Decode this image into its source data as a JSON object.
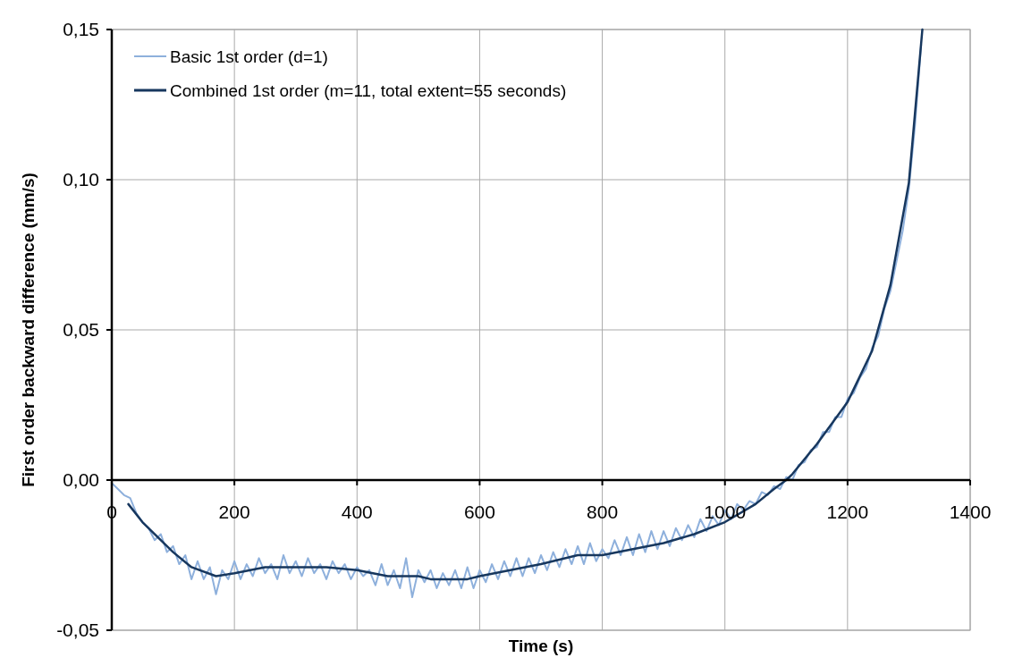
{
  "chart_data": {
    "type": "line",
    "xlabel": "Time (s)",
    "ylabel": "First order backward difference (mm/s)",
    "xlim": [
      0,
      1400
    ],
    "xticks": [
      0,
      200,
      400,
      600,
      800,
      1000,
      1200,
      1400
    ],
    "ylim": [
      -0.05,
      0.15
    ],
    "yticks": [
      {
        "value": -0.05,
        "label": "-0,05"
      },
      {
        "value": 0,
        "label": "0,00"
      },
      {
        "value": 0.05,
        "label": "0,05"
      },
      {
        "value": 0.1,
        "label": "0,10"
      },
      {
        "value": 0.15,
        "label": "0,15"
      }
    ],
    "grid": true,
    "legend": "top left",
    "marker": "none",
    "line_style": "solid",
    "series": [
      {
        "name": "Basic 1st order (d=1)",
        "color": "#8eb0dc",
        "x": [
          0,
          10,
          20,
          30,
          40,
          50,
          60,
          70,
          80,
          90,
          100,
          110,
          120,
          130,
          140,
          150,
          160,
          170,
          180,
          190,
          200,
          210,
          220,
          230,
          240,
          250,
          260,
          270,
          280,
          290,
          300,
          310,
          320,
          330,
          340,
          350,
          360,
          370,
          380,
          390,
          400,
          410,
          420,
          430,
          440,
          450,
          460,
          470,
          480,
          490,
          500,
          510,
          520,
          530,
          540,
          550,
          560,
          570,
          580,
          590,
          600,
          610,
          620,
          630,
          640,
          650,
          660,
          670,
          680,
          690,
          700,
          710,
          720,
          730,
          740,
          750,
          760,
          770,
          780,
          790,
          800,
          810,
          820,
          830,
          840,
          850,
          860,
          870,
          880,
          890,
          900,
          910,
          920,
          930,
          940,
          950,
          960,
          970,
          980,
          990,
          1000,
          1010,
          1020,
          1030,
          1040,
          1050,
          1060,
          1070,
          1080,
          1090,
          1100,
          1110,
          1120,
          1130,
          1140,
          1150,
          1160,
          1170,
          1180,
          1190,
          1200,
          1210,
          1220,
          1230,
          1240,
          1250,
          1260,
          1270,
          1280,
          1290,
          1300,
          1310,
          1320
        ],
        "values": [
          -0.001,
          -0.003,
          -0.005,
          -0.006,
          -0.011,
          -0.014,
          -0.016,
          -0.02,
          -0.018,
          -0.024,
          -0.022,
          -0.028,
          -0.025,
          -0.033,
          -0.027,
          -0.033,
          -0.029,
          -0.038,
          -0.03,
          -0.033,
          -0.027,
          -0.033,
          -0.028,
          -0.032,
          -0.026,
          -0.031,
          -0.028,
          -0.033,
          -0.025,
          -0.031,
          -0.027,
          -0.032,
          -0.026,
          -0.031,
          -0.028,
          -0.033,
          -0.027,
          -0.031,
          -0.028,
          -0.033,
          -0.029,
          -0.032,
          -0.03,
          -0.035,
          -0.028,
          -0.035,
          -0.03,
          -0.036,
          -0.026,
          -0.039,
          -0.03,
          -0.034,
          -0.03,
          -0.036,
          -0.031,
          -0.035,
          -0.03,
          -0.036,
          -0.029,
          -0.036,
          -0.03,
          -0.034,
          -0.028,
          -0.033,
          -0.027,
          -0.032,
          -0.026,
          -0.032,
          -0.026,
          -0.031,
          -0.025,
          -0.03,
          -0.024,
          -0.029,
          -0.023,
          -0.028,
          -0.022,
          -0.028,
          -0.021,
          -0.027,
          -0.023,
          -0.026,
          -0.02,
          -0.025,
          -0.019,
          -0.025,
          -0.018,
          -0.024,
          -0.017,
          -0.023,
          -0.017,
          -0.022,
          -0.016,
          -0.02,
          -0.015,
          -0.019,
          -0.013,
          -0.017,
          -0.012,
          -0.015,
          -0.01,
          -0.013,
          -0.008,
          -0.01,
          -0.007,
          -0.008,
          -0.004,
          -0.005,
          -0.002,
          -0.003,
          0.001,
          0,
          0.005,
          0.006,
          0.01,
          0.011,
          0.016,
          0.016,
          0.021,
          0.021,
          0.027,
          0.029,
          0.034,
          0.037,
          0.044,
          0.048,
          0.057,
          0.063,
          0.073,
          0.083,
          0.097,
          0.118,
          0.145
        ]
      },
      {
        "name": "Combined 1st order (m=11, total extent=55 seconds)",
        "color": "#17375e",
        "x": [
          27,
          50,
          100,
          130,
          170,
          200,
          250,
          300,
          350,
          400,
          450,
          500,
          520,
          580,
          600,
          650,
          700,
          760,
          800,
          850,
          900,
          950,
          1000,
          1050,
          1080,
          1100,
          1110,
          1150,
          1200,
          1240,
          1270,
          1300,
          1322
        ],
        "values": [
          -0.008,
          -0.014,
          -0.024,
          -0.029,
          -0.032,
          -0.031,
          -0.029,
          -0.029,
          -0.029,
          -0.03,
          -0.032,
          -0.032,
          -0.033,
          -0.033,
          -0.032,
          -0.03,
          -0.028,
          -0.025,
          -0.025,
          -0.023,
          -0.021,
          -0.018,
          -0.014,
          -0.008,
          -0.003,
          0,
          0.002,
          0.012,
          0.026,
          0.043,
          0.065,
          0.099,
          0.15
        ]
      }
    ]
  }
}
